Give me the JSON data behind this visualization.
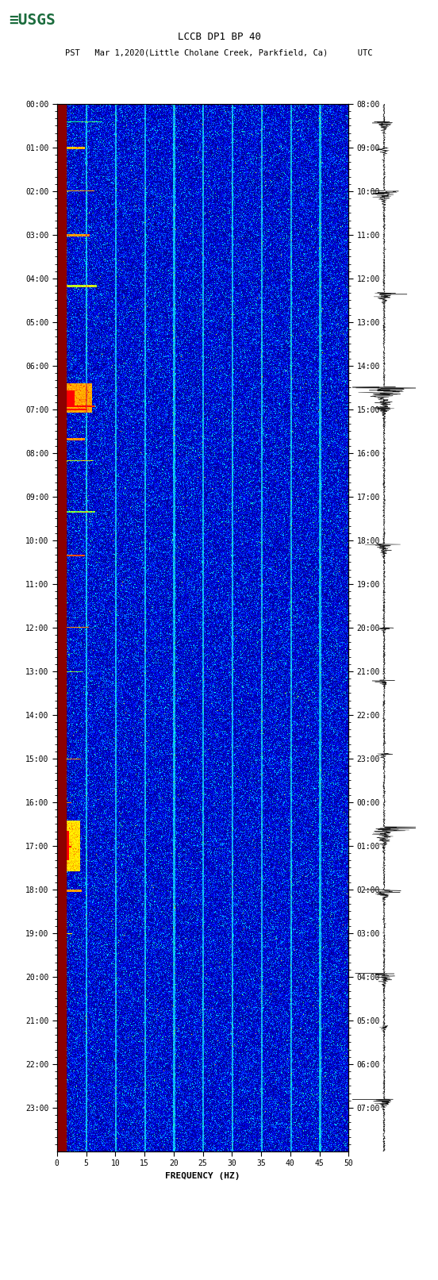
{
  "title_line1": "LCCB DP1 BP 40",
  "title_line2": "PST   Mar 1,2020(Little Cholane Creek, Parkfield, Ca)      UTC",
  "xlabel": "FREQUENCY (HZ)",
  "freq_min": 0,
  "freq_max": 50,
  "freq_ticks": [
    0,
    5,
    10,
    15,
    20,
    25,
    30,
    35,
    40,
    45,
    50
  ],
  "time_start_pst": "00:00",
  "time_end_pst": "23:00",
  "time_start_utc": "08:00",
  "time_end_utc": "07:00",
  "left_labels": [
    "00:00",
    "01:00",
    "02:00",
    "03:00",
    "04:00",
    "05:00",
    "06:00",
    "07:00",
    "08:00",
    "09:00",
    "10:00",
    "11:00",
    "12:00",
    "13:00",
    "14:00",
    "15:00",
    "16:00",
    "17:00",
    "18:00",
    "19:00",
    "20:00",
    "21:00",
    "22:00",
    "23:00"
  ],
  "right_labels": [
    "08:00",
    "09:00",
    "10:00",
    "11:00",
    "12:00",
    "13:00",
    "14:00",
    "15:00",
    "16:00",
    "17:00",
    "18:00",
    "19:00",
    "20:00",
    "21:00",
    "22:00",
    "23:00",
    "00:00",
    "01:00",
    "02:00",
    "03:00",
    "04:00",
    "05:00",
    "06:00",
    "07:00"
  ],
  "bg_color": "#ffffff",
  "spectrogram_bg": "#000080",
  "dark_red_col": "#8B0000",
  "usgs_green": "#1a6b3c",
  "waveform_color": "#000000",
  "fig_width": 5.52,
  "fig_height": 16.13,
  "dpi": 100
}
